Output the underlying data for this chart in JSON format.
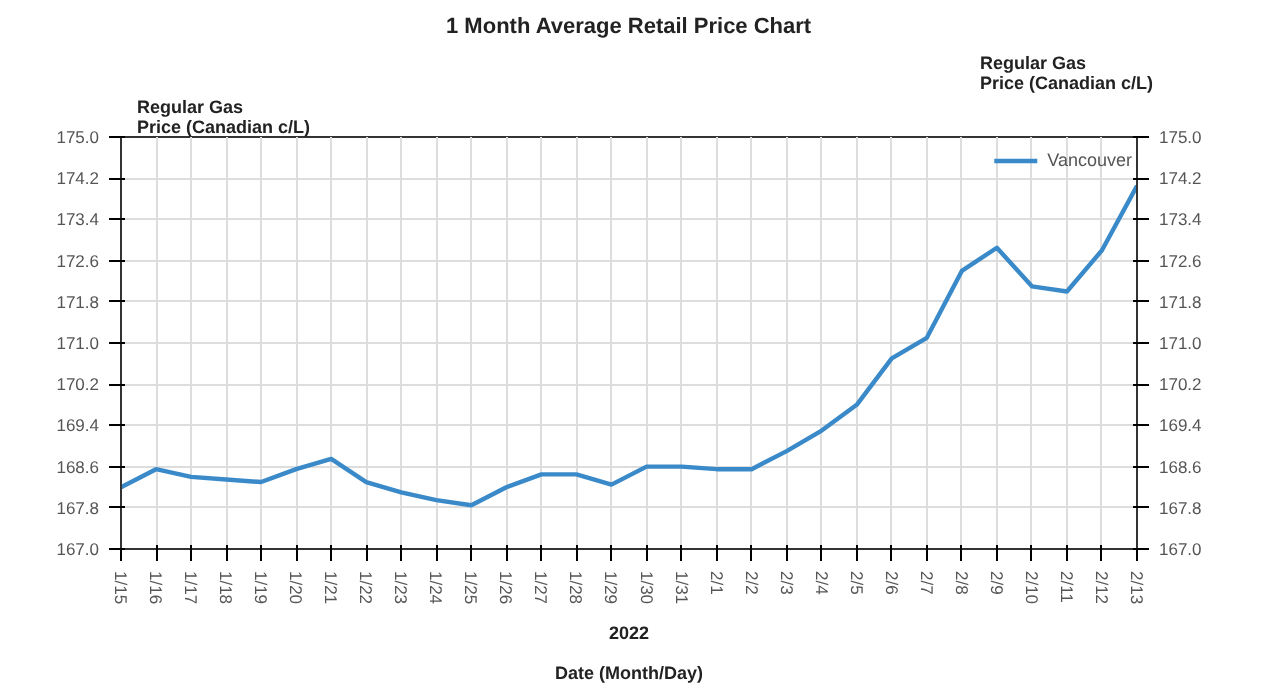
{
  "chart_data": {
    "type": "line",
    "title": "1 Month Average Retail Price Chart",
    "xlabel": "Date (Month/Day)",
    "ylabel": "Regular Gas\nPrice (Canadian c/L)",
    "y2label": "Regular Gas\nPrice (Canadian c/L)",
    "annotations": [
      "2022"
    ],
    "categories": [
      "1/15",
      "1/16",
      "1/17",
      "1/18",
      "1/19",
      "1/20",
      "1/21",
      "1/22",
      "1/23",
      "1/24",
      "1/25",
      "1/26",
      "1/27",
      "1/28",
      "1/29",
      "1/30",
      "1/31",
      "2/1",
      "2/2",
      "2/3",
      "2/4",
      "2/5",
      "2/6",
      "2/7",
      "2/8",
      "2/9",
      "2/10",
      "2/11",
      "2/12",
      "2/13"
    ],
    "series": [
      {
        "name": "Vancouver",
        "color": "#3a8ac9",
        "values": [
          168.2,
          168.55,
          168.4,
          168.35,
          168.3,
          168.55,
          168.75,
          168.3,
          168.1,
          167.95,
          167.85,
          168.2,
          168.45,
          168.45,
          168.25,
          168.6,
          168.6,
          168.55,
          168.55,
          168.9,
          169.3,
          169.8,
          170.7,
          171.1,
          172.4,
          172.85,
          172.1,
          172.0,
          172.8,
          174.05
        ]
      }
    ],
    "ylim": [
      167.0,
      175.0
    ],
    "yticks": [
      {
        "value": 167.0,
        "label": "167.0"
      },
      {
        "value": 167.8,
        "label": "167.8"
      },
      {
        "value": 168.6,
        "label": "168.6"
      },
      {
        "value": 169.4,
        "label": "169.4"
      },
      {
        "value": 170.2,
        "label": "170.2"
      },
      {
        "value": 171.0,
        "label": "171.0"
      },
      {
        "value": 171.8,
        "label": "171.8"
      },
      {
        "value": 172.6,
        "label": "172.6"
      },
      {
        "value": 173.4,
        "label": "173.4"
      },
      {
        "value": 174.2,
        "label": "174.2"
      },
      {
        "value": 175.0,
        "label": "175.0"
      }
    ],
    "y2lim": [
      167.0,
      175.0
    ],
    "y2ticks": [
      {
        "value": 167.0,
        "label": "167.0"
      },
      {
        "value": 167.8,
        "label": "167.8"
      },
      {
        "value": 168.6,
        "label": "168.6"
      },
      {
        "value": 169.4,
        "label": "169.4"
      },
      {
        "value": 170.2,
        "label": "170.2"
      },
      {
        "value": 171.0,
        "label": "171.0"
      },
      {
        "value": 171.8,
        "label": "171.8"
      },
      {
        "value": 172.6,
        "label": "172.6"
      },
      {
        "value": 173.4,
        "label": "173.4"
      },
      {
        "value": 174.2,
        "label": "174.2"
      },
      {
        "value": 175.0,
        "label": "175.0"
      }
    ],
    "grid": true,
    "legend": "top right",
    "marker": "none",
    "line_style": "solid"
  }
}
